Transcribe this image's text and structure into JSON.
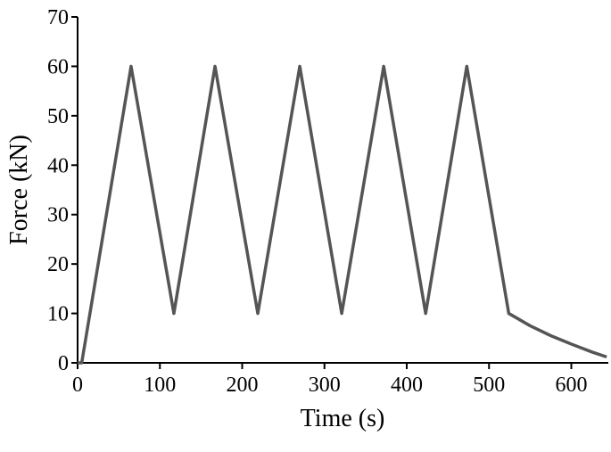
{
  "chart_data": {
    "type": "line",
    "x_label": "Time (s)",
    "y_label": "Force (kN)",
    "x": [
      0,
      5,
      65,
      117,
      167,
      219,
      270,
      321,
      372,
      423,
      473,
      524,
      550,
      575,
      600,
      625,
      643
    ],
    "series": [
      {
        "name": "Force",
        "color": "#555555",
        "values": [
          0,
          0,
          60,
          10,
          60,
          10,
          60,
          10,
          60,
          10,
          60,
          10,
          7.5,
          5.5,
          3.8,
          2.2,
          1.2
        ]
      }
    ],
    "xlim": [
      0,
      645
    ],
    "xticks": [
      0,
      100,
      200,
      300,
      400,
      500,
      600
    ],
    "ylim": [
      0,
      70
    ],
    "yticks": [
      0,
      10,
      20,
      30,
      40,
      50,
      60,
      70
    ]
  }
}
